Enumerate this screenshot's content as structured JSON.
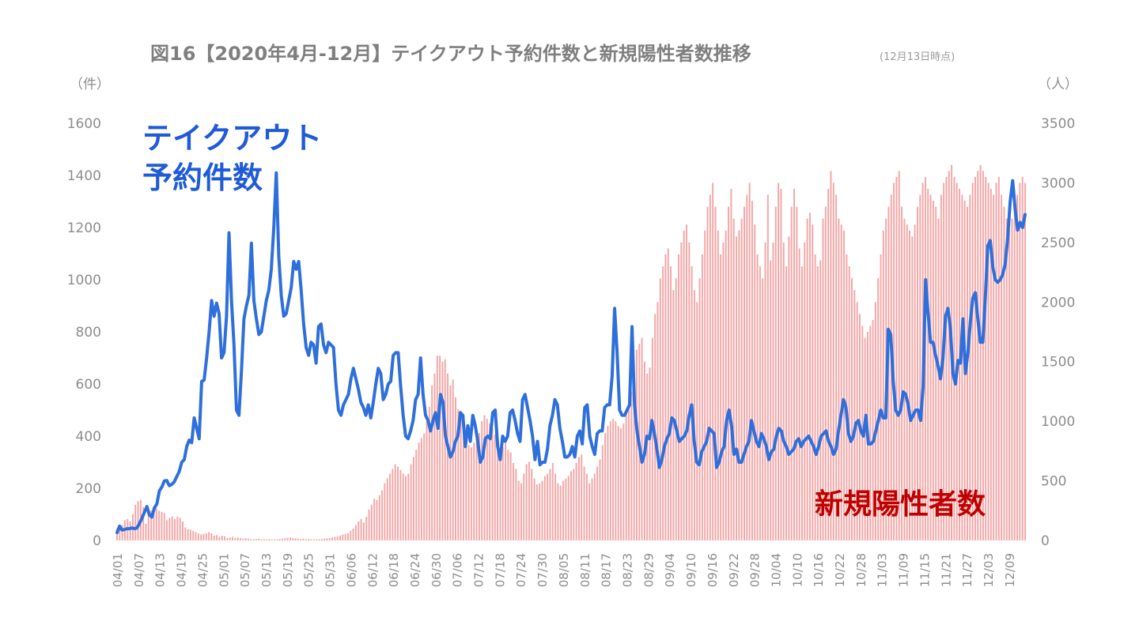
{
  "chart_data": {
    "type": "bar+line",
    "title": "図16【2020年4月-12月】テイクアウト予約件数と新規陽性者数推移",
    "title_note": "(12月13日時点)",
    "y_left_unit": "（件）",
    "y_right_unit": "（人）",
    "y_left_lim": [
      0,
      1600
    ],
    "y_right_lim": [
      0,
      3500
    ],
    "y_left_ticks": [
      "0",
      "200",
      "400",
      "600",
      "800",
      "1000",
      "1200",
      "1400",
      "1600"
    ],
    "y_right_ticks": [
      "0",
      "500",
      "1000",
      "1500",
      "2000",
      "2500",
      "3000",
      "3500"
    ],
    "x_tick_labels": [
      "04/01",
      "04/07",
      "04/13",
      "04/19",
      "04/25",
      "05/01",
      "05/07",
      "05/13",
      "05/19",
      "05/25",
      "05/31",
      "06/06",
      "06/12",
      "06/18",
      "06/24",
      "06/30",
      "07/06",
      "07/12",
      "07/18",
      "07/24",
      "07/30",
      "08/05",
      "08/11",
      "08/17",
      "08/23",
      "08/29",
      "09/04",
      "09/10",
      "09/16",
      "09/22",
      "09/28",
      "10/04",
      "10/10",
      "10/16",
      "10/22",
      "10/28",
      "11/03",
      "11/09",
      "11/15",
      "11/21",
      "11/27",
      "12/03",
      "12/09"
    ],
    "legend_line": [
      "テイクアウト",
      "予約件数"
    ],
    "legend_bar": "新規陽性者数",
    "colors": {
      "line": "#2e6fdc",
      "bar": "#f4a6a6",
      "line_label": "#1f5bd8",
      "bar_label": "#c00000"
    },
    "series": [
      {
        "name": "テイクアウト予約件数",
        "axis": "left",
        "type": "line",
        "values": [
          30,
          55,
          40,
          42,
          45,
          45,
          48,
          45,
          48,
          65,
          85,
          108,
          130,
          98,
          90,
          125,
          140,
          190,
          205,
          228,
          230,
          210,
          215,
          225,
          245,
          265,
          300,
          310,
          360,
          385,
          375,
          470,
          430,
          390,
          610,
          615,
          700,
          800,
          920,
          860,
          910,
          870,
          700,
          720,
          860,
          1180,
          920,
          750,
          500,
          480,
          650,
          850,
          900,
          940,
          1140,
          920,
          850,
          790,
          800,
          860,
          920,
          960,
          1040,
          1200,
          1410,
          1090,
          940,
          860,
          870,
          920,
          970,
          1070,
          1040,
          1070,
          960,
          830,
          740,
          710,
          760,
          750,
          680,
          820,
          830,
          750,
          720,
          760,
          750,
          740,
          600,
          500,
          480,
          520,
          540,
          560,
          620,
          660,
          620,
          580,
          530,
          510,
          480,
          520,
          470,
          530,
          600,
          660,
          640,
          540,
          560,
          600,
          610,
          710,
          720,
          720,
          590,
          480,
          400,
          390,
          420,
          460,
          540,
          560,
          700,
          560,
          480,
          460,
          420,
          460,
          490,
          430,
          560,
          530,
          400,
          360,
          320,
          340,
          380,
          400,
          490,
          480,
          360,
          440,
          380,
          480,
          440,
          380,
          300,
          320,
          390,
          400,
          390,
          490,
          500,
          360,
          310,
          400,
          380,
          400,
          490,
          500,
          460,
          410,
          380,
          540,
          560,
          510,
          460,
          400,
          310,
          380,
          290,
          300,
          300,
          350,
          440,
          480,
          540,
          520,
          430,
          380,
          320,
          320,
          330,
          360,
          320,
          400,
          420,
          370,
          510,
          520,
          400,
          360,
          330,
          410,
          420,
          420,
          510,
          520,
          520,
          630,
          890,
          720,
          500,
          480,
          480,
          500,
          520,
          820,
          520,
          420,
          360,
          300,
          330,
          400,
          390,
          460,
          410,
          350,
          280,
          310,
          360,
          390,
          410,
          470,
          460,
          420,
          380,
          390,
          400,
          420,
          480,
          520,
          380,
          300,
          290,
          340,
          360,
          380,
          430,
          420,
          410,
          280,
          300,
          340,
          360,
          460,
          500,
          440,
          330,
          350,
          300,
          300,
          330,
          360,
          380,
          460,
          420,
          380,
          360,
          410,
          390,
          360,
          310,
          340,
          350,
          400,
          430,
          420,
          380,
          360,
          330,
          340,
          350,
          380,
          390,
          360,
          380,
          390,
          400,
          380,
          360,
          330,
          360,
          400,
          410,
          420,
          380,
          360,
          330,
          350,
          420,
          480,
          540,
          510,
          410,
          380,
          400,
          450,
          460,
          420,
          400,
          480,
          370,
          370,
          380,
          420,
          460,
          500,
          470,
          470,
          810,
          790,
          610,
          500,
          480,
          500,
          570,
          560,
          520,
          460,
          480,
          500,
          500,
          460,
          590,
          1000,
          870,
          760,
          760,
          710,
          670,
          620,
          700,
          860,
          890,
          810,
          640,
          600,
          690,
          680,
          850,
          640,
          720,
          840,
          930,
          950,
          850,
          760,
          760,
          930,
          1130,
          1150,
          1050,
          1000,
          990,
          1000,
          1020,
          1060,
          1160,
          1300,
          1380,
          1270,
          1190,
          1220,
          1200,
          1250
        ]
      },
      {
        "name": "新規陽性者数",
        "axis": "right",
        "type": "bar",
        "values": [
          100,
          110,
          130,
          170,
          180,
          160,
          220,
          300,
          330,
          340,
          280,
          140,
          220,
          250,
          260,
          270,
          250,
          240,
          230,
          170,
          190,
          200,
          180,
          200,
          190,
          160,
          110,
          95,
          90,
          80,
          70,
          60,
          50,
          55,
          60,
          70,
          60,
          40,
          45,
          30,
          40,
          35,
          20,
          25,
          30,
          20,
          25,
          20,
          15,
          20,
          15,
          10,
          10,
          12,
          15,
          10,
          10,
          8,
          10,
          8,
          9,
          10,
          12,
          15,
          20,
          22,
          25,
          20,
          18,
          15,
          12,
          14,
          10,
          12,
          10,
          8,
          9,
          10,
          12,
          15,
          18,
          20,
          25,
          30,
          35,
          40,
          50,
          55,
          60,
          80,
          100,
          130,
          160,
          180,
          150,
          200,
          260,
          300,
          350,
          340,
          380,
          420,
          480,
          520,
          560,
          600,
          640,
          620,
          590,
          560,
          540,
          560,
          640,
          700,
          760,
          820,
          860,
          900,
          1000,
          1120,
          1300,
          1400,
          1550,
          1550,
          1500,
          1520,
          1400,
          1300,
          1350,
          1200,
          1100,
          1020,
          900,
          860,
          800,
          780,
          820,
          850,
          900,
          1000,
          1050,
          1020,
          980,
          940,
          890,
          820,
          700,
          780,
          820,
          760,
          740,
          650,
          600,
          500,
          480,
          560,
          640,
          660,
          600,
          520,
          470,
          480,
          500,
          540,
          560,
          600,
          650,
          560,
          480,
          460,
          500,
          520,
          540,
          580,
          600,
          650,
          700,
          720,
          620,
          560,
          480,
          520,
          560,
          620,
          680,
          800,
          900,
          960,
          1000,
          1020,
          1000,
          960,
          940,
          980,
          1060,
          1160,
          1250,
          1400,
          1600,
          1650,
          1700,
          1500,
          1400,
          1450,
          1700,
          1900,
          2000,
          2200,
          2300,
          2400,
          2450,
          2300,
          2100,
          2200,
          2400,
          2500,
          2600,
          2650,
          2500,
          2300,
          2100,
          2000,
          2200,
          2400,
          2600,
          2800,
          2900,
          3000,
          2800,
          2600,
          2400,
          2500,
          2600,
          2800,
          2950,
          2700,
          2550,
          2600,
          2700,
          2800,
          2900,
          3000,
          2850,
          2650,
          2400,
          2300,
          2200,
          2500,
          2900,
          2350,
          2500,
          2800,
          3000,
          2950,
          2500,
          2300,
          2550,
          2800,
          2950,
          2800,
          2450,
          2300,
          2500,
          2700,
          2750,
          2650,
          2400,
          2300,
          2350,
          2700,
          2800,
          2950,
          3100,
          3000,
          2900,
          2700,
          2650,
          2600,
          2400,
          2300,
          2200,
          2100,
          2000,
          1900,
          1800,
          1700,
          1750,
          1800,
          1850,
          2000,
          2200,
          2400,
          2600,
          2700,
          2800,
          2900,
          3000,
          3050,
          3100,
          2800,
          2700,
          2650,
          2600,
          2550,
          2650,
          2800,
          2900,
          3000,
          3050,
          2950,
          2900,
          2850,
          2800,
          2700,
          2900,
          3000,
          3050,
          3100,
          3150,
          3050,
          3000,
          2950,
          2900,
          2850,
          2800,
          2900,
          3000,
          3050,
          3100,
          3150,
          3100,
          3050,
          3000,
          2950,
          2900,
          3000,
          3050,
          2900,
          2800,
          2700,
          2600,
          2700,
          2800,
          2900,
          3000,
          3050,
          3000
        ]
      }
    ]
  }
}
